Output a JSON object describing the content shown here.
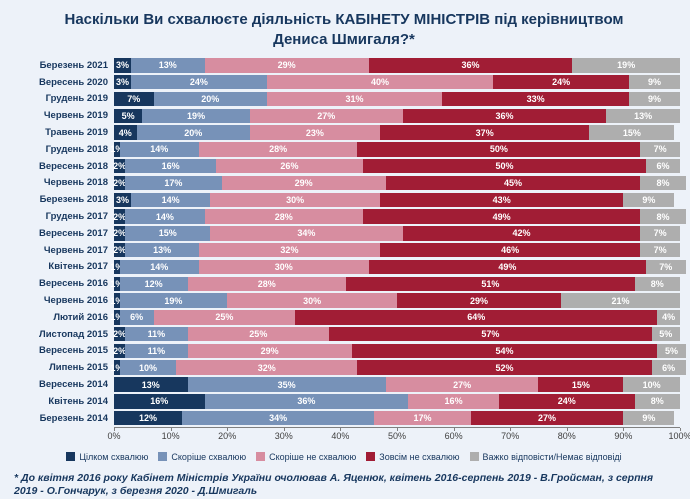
{
  "title": "Наскільки Ви схвалюєте діяльність КАБІНЕТУ МІНІСТРІВ під керівництвом Дениса Шмигаля?*",
  "footnote": "* До квітня 2016 року Кабінет Міністрів України очолював А. Яценюк, квітень 2016-серпень 2019 - В.Гройсман, з серпня 2019 - О.Гончарук, з березня 2020 - Д.Шмигаль",
  "colors": {
    "background": "#edf2f9",
    "text_navy": "#17375e",
    "axis_text": "#404040"
  },
  "chart_data": {
    "type": "bar",
    "orientation": "horizontal",
    "stacked": true,
    "grid": false,
    "legend_position": "bottom",
    "value_suffix": "%",
    "xlim": [
      0,
      100
    ],
    "categories": [
      "Березень 2021",
      "Вересень 2020",
      "Грудень 2019",
      "Червень 2019",
      "Травень 2019",
      "Грудень 2018",
      "Вересень 2018",
      "Червень 2018",
      "Березень 2018",
      "Грудень 2017",
      "Вересень 2017",
      "Червень 2017",
      "Квітень 2017",
      "Вересень 2016",
      "Червень 2016",
      "Лютий 2016",
      "Листопад 2015",
      "Вересень 2015",
      "Липень 2015",
      "Вересень 2014",
      "Квітень 2014",
      "Березень 2014"
    ],
    "series": [
      {
        "key": "fully-approve",
        "name": "Цілком схвалюю",
        "color": "#17375e",
        "values": [
          3,
          3,
          7,
          5,
          4,
          1,
          2,
          2,
          3,
          2,
          2,
          2,
          1,
          1,
          1,
          1,
          2,
          2,
          1,
          13,
          16,
          12
        ]
      },
      {
        "key": "rather-approve",
        "name": "Скоріше схвалюю",
        "color": "#7792b8",
        "values": [
          13,
          24,
          20,
          19,
          20,
          14,
          16,
          17,
          14,
          14,
          15,
          13,
          14,
          12,
          19,
          6,
          11,
          11,
          10,
          35,
          36,
          34
        ]
      },
      {
        "key": "rather-disapprove",
        "name": "Скоріше не схвалюю",
        "color": "#d78da0",
        "values": [
          29,
          40,
          31,
          27,
          23,
          28,
          26,
          29,
          30,
          28,
          34,
          32,
          30,
          28,
          30,
          25,
          25,
          29,
          32,
          27,
          16,
          17
        ]
      },
      {
        "key": "fully-disapprove",
        "name": "Зовсім не схвалюю",
        "color": "#a11d35",
        "values": [
          36,
          24,
          33,
          36,
          37,
          50,
          50,
          45,
          43,
          49,
          42,
          46,
          49,
          51,
          29,
          64,
          57,
          54,
          52,
          15,
          24,
          27
        ]
      },
      {
        "key": "hard-to-answer",
        "name": "Важко відповісти/Немає відповіді",
        "color": "#aeaeae",
        "values": [
          19,
          9,
          9,
          13,
          15,
          7,
          6,
          8,
          9,
          8,
          7,
          7,
          7,
          8,
          21,
          4,
          5,
          5,
          6,
          10,
          8,
          9
        ]
      }
    ],
    "x_axis": {
      "ticks": [
        "0%",
        "10%",
        "20%",
        "30%",
        "40%",
        "50%",
        "60%",
        "70%",
        "80%",
        "90%",
        "100%"
      ]
    }
  }
}
